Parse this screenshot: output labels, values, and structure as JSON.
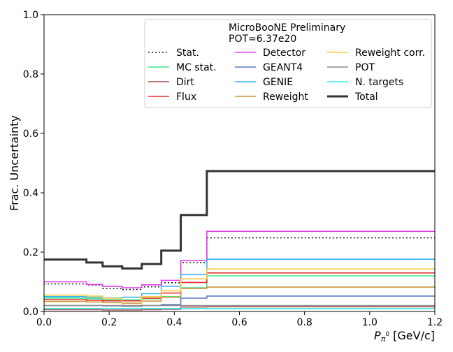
{
  "chart_data": {
    "type": "line",
    "step": true,
    "title": "",
    "xlabel": "P_{π⁰} [GeV/c]",
    "xlabel_main": "P",
    "xlabel_sub": "π",
    "xlabel_sup": "0",
    "xlabel_unit": " [GeV/c]",
    "ylabel": "Frac. Uncertainty",
    "xlim": [
      0.0,
      1.2
    ],
    "ylim": [
      0.0,
      1.0
    ],
    "xticks": [
      "0.0",
      "0.2",
      "0.4",
      "0.6",
      "0.8",
      "1.0",
      "1.2"
    ],
    "xtick_values": [
      0.0,
      0.2,
      0.4,
      0.6,
      0.8,
      1.0,
      1.2
    ],
    "yticks": [
      "0.0",
      "0.2",
      "0.4",
      "0.6",
      "0.8",
      "1.0"
    ],
    "ytick_values": [
      0.0,
      0.2,
      0.4,
      0.6,
      0.8,
      1.0
    ],
    "legend_title_line1": "MicroBooNE Preliminary",
    "legend_title_line2": "POT=6.37e20",
    "legend_position": "top-right",
    "bin_edges": [
      0.0,
      0.13,
      0.18,
      0.24,
      0.3,
      0.36,
      0.42,
      0.5,
      1.2
    ],
    "series": [
      {
        "name": "Stat.",
        "color": "#222222",
        "dash": "dotted",
        "values": [
          0.093,
          0.089,
          0.078,
          0.074,
          0.083,
          0.097,
          0.165,
          0.248
        ]
      },
      {
        "name": "MC stat.",
        "color": "#3de88a",
        "dash": "solid",
        "values": [
          0.045,
          0.043,
          0.04,
          0.039,
          0.043,
          0.05,
          0.08,
          0.12
        ]
      },
      {
        "name": "Dirt",
        "color": "#b05050",
        "dash": "solid",
        "values": [
          0.006,
          0.006,
          0.005,
          0.005,
          0.006,
          0.007,
          0.015,
          0.016
        ]
      },
      {
        "name": "Flux",
        "color": "#e83030",
        "dash": "solid",
        "values": [
          0.04,
          0.038,
          0.036,
          0.036,
          0.045,
          0.062,
          0.098,
          0.13
        ]
      },
      {
        "name": "Detector",
        "color": "#e040e8",
        "dash": "solid",
        "values": [
          0.1,
          0.091,
          0.085,
          0.08,
          0.09,
          0.105,
          0.172,
          0.27
        ]
      },
      {
        "name": "GEANT4",
        "color": "#5a7ac8",
        "dash": "solid",
        "values": [
          0.02,
          0.02,
          0.019,
          0.018,
          0.02,
          0.023,
          0.045,
          0.052
        ]
      },
      {
        "name": "GENIE",
        "color": "#3ab4f0",
        "dash": "solid",
        "values": [
          0.05,
          0.048,
          0.046,
          0.048,
          0.06,
          0.085,
          0.125,
          0.176
        ]
      },
      {
        "name": "Reweight",
        "color": "#c8963c",
        "dash": "solid",
        "values": [
          0.034,
          0.032,
          0.03,
          0.028,
          0.035,
          0.048,
          0.078,
          0.082
        ]
      },
      {
        "name": "Reweight corr.",
        "color": "#f5cc40",
        "dash": "solid",
        "values": [
          0.055,
          0.052,
          0.045,
          0.02,
          0.05,
          0.07,
          0.11,
          0.143
        ]
      },
      {
        "name": "POT",
        "color": "#8c8c8c",
        "dash": "solid",
        "values": [
          0.02,
          0.02,
          0.02,
          0.02,
          0.02,
          0.02,
          0.02,
          0.02
        ]
      },
      {
        "name": "N. targets",
        "color": "#40e8f0",
        "dash": "solid",
        "values": [
          0.01,
          0.01,
          0.01,
          0.01,
          0.01,
          0.01,
          0.01,
          0.01
        ]
      },
      {
        "name": "Total",
        "color": "#333333",
        "dash": "bold",
        "values": [
          0.175,
          0.165,
          0.152,
          0.145,
          0.16,
          0.205,
          0.325,
          0.473
        ]
      }
    ],
    "grid": false
  }
}
